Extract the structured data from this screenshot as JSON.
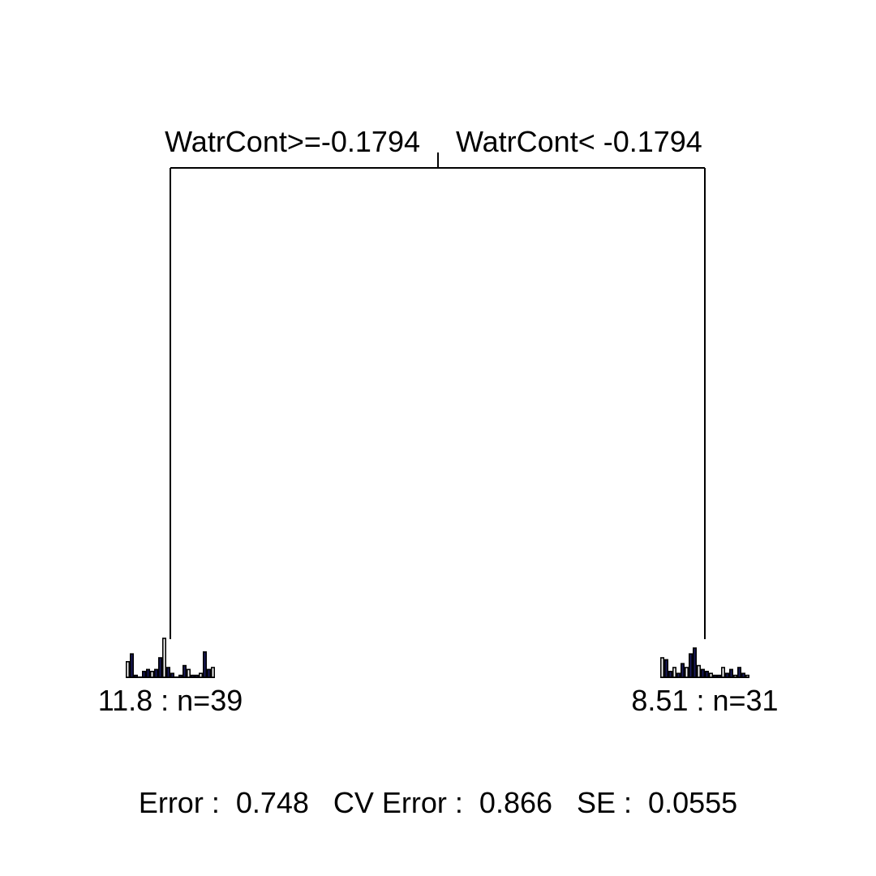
{
  "split": {
    "left_label": "WatrCont>=-0.1794",
    "right_label": "WatrCont< -0.1794"
  },
  "leaves": [
    {
      "label": "11.8 : n=39",
      "histogram": [
        0.4,
        0.6,
        0.05,
        0.0,
        0.15,
        0.2,
        0.15,
        0.2,
        0.5,
        1.0,
        0.25,
        0.1,
        0.0,
        0.05,
        0.3,
        0.2,
        0.05,
        0.05,
        0.1,
        0.65,
        0.2,
        0.25
      ]
    },
    {
      "label": "8.51 : n=31",
      "histogram": [
        0.5,
        0.45,
        0.15,
        0.25,
        0.1,
        0.35,
        0.25,
        0.6,
        0.75,
        0.3,
        0.2,
        0.15,
        0.1,
        0.05,
        0.05,
        0.25,
        0.1,
        0.2,
        0.05,
        0.25,
        0.1,
        0.05
      ]
    }
  ],
  "summary": {
    "text": "Error :  0.748   CV Error :  0.866   SE :  0.0555"
  },
  "colors": {
    "line": "#000000",
    "bar_outline": "#000000",
    "bar_fill_light": "#ffffff",
    "bar_fill_dark": "#1a1a5e"
  }
}
